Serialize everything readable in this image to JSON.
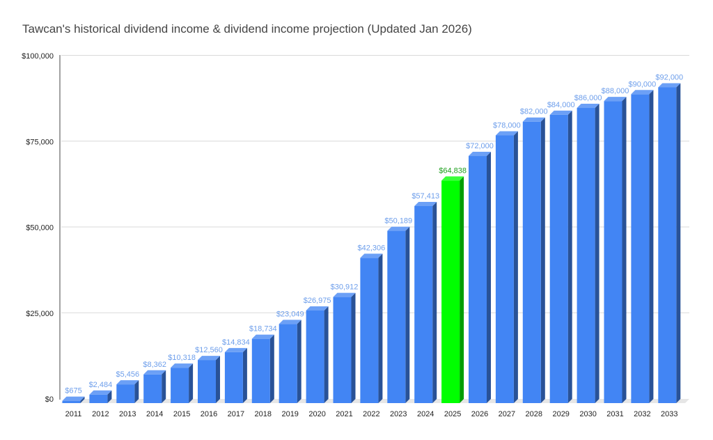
{
  "chart_data": {
    "type": "bar",
    "title": "Tawcan's historical dividend income & dividend income projection (Updated Jan 2026)",
    "xlabel": "",
    "ylabel": "",
    "ylim": [
      0,
      100000
    ],
    "yticks": [
      {
        "value": 0,
        "label": "$0"
      },
      {
        "value": 25000,
        "label": "$25,000"
      },
      {
        "value": 50000,
        "label": "$50,000"
      },
      {
        "value": 75000,
        "label": "$75,000"
      },
      {
        "value": 100000,
        "label": "$100,000"
      }
    ],
    "grid": true,
    "style": "3d",
    "categories": [
      "2011",
      "2012",
      "2013",
      "2014",
      "2015",
      "2016",
      "2017",
      "2018",
      "2019",
      "2020",
      "2021",
      "2022",
      "2023",
      "2024",
      "2025",
      "2026",
      "2027",
      "2028",
      "2029",
      "2030",
      "2031",
      "2032",
      "2033"
    ],
    "values": [
      675,
      2484,
      5456,
      8362,
      10318,
      12560,
      14834,
      18734,
      23049,
      26975,
      30912,
      42306,
      50189,
      57413,
      64838,
      72000,
      78000,
      82000,
      84000,
      86000,
      88000,
      90000,
      92000
    ],
    "data_labels": [
      "$675",
      "$2,484",
      "$5,456",
      "$8,362",
      "$10,318",
      "$12,560",
      "$14,834",
      "$18,734",
      "$23,049",
      "$26,975",
      "$30,912",
      "$42,306",
      "$50,189",
      "$57,413",
      "$64,838",
      "$72,000",
      "$78,000",
      "$82,000",
      "$84,000",
      "$86,000",
      "$88,000",
      "$90,000",
      "$92,000"
    ],
    "highlight_index": 14,
    "colors": {
      "bar": "#4285f4",
      "bar_highlight": "#00ff00",
      "label": "#6d9eeb",
      "label_highlight": "#1a9e1a",
      "grid": "#d9d9d9"
    }
  }
}
